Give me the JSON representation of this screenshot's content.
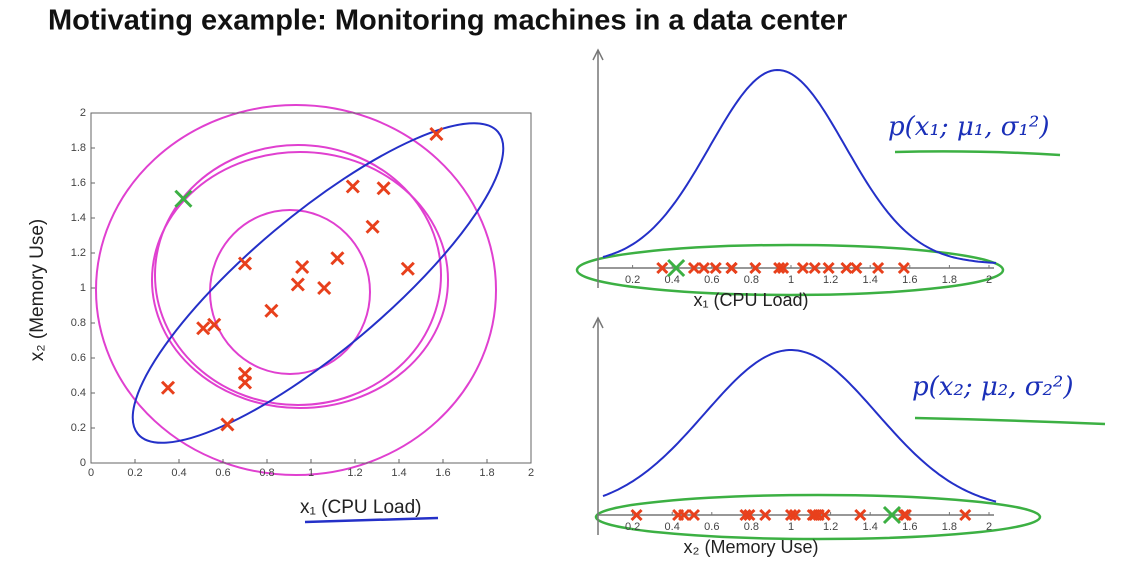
{
  "title": "Motivating example: Monitoring machines in a data center",
  "chart_data": [
    {
      "type": "scatter",
      "color": "#e8401c",
      "x": [
        1.57,
        1.19,
        1.33,
        1.28,
        1.12,
        0.7,
        0.96,
        1.44,
        0.94,
        1.06,
        0.82,
        0.56,
        0.51,
        0.7,
        0.7,
        0.35,
        0.62
      ],
      "y": [
        1.88,
        1.58,
        1.57,
        1.35,
        1.17,
        1.14,
        1.12,
        1.11,
        1.02,
        1.0,
        0.87,
        0.79,
        0.77,
        0.51,
        0.46,
        0.43,
        0.22
      ],
      "anomaly": {
        "x": [
          0.42
        ],
        "y": [
          1.51
        ],
        "color": "#3cb043"
      },
      "xlim": [
        0,
        2
      ],
      "ylim": [
        0,
        2
      ],
      "xticks": [
        0,
        0.2,
        0.4,
        0.6,
        0.8,
        1,
        1.2,
        1.4,
        1.6,
        1.8,
        2
      ],
      "yticks": [
        0,
        0.2,
        0.4,
        0.6,
        0.8,
        1,
        1.2,
        1.4,
        1.6,
        1.8,
        2
      ],
      "xlabel": "x₁ (CPU Load)",
      "ylabel": "x₂ (Memory Use)"
    },
    {
      "type": "strip",
      "color": "#e8401c",
      "values": [
        1.57,
        1.19,
        1.33,
        1.28,
        1.12,
        0.7,
        0.96,
        1.44,
        0.94,
        1.06,
        0.82,
        0.56,
        0.51,
        0.7,
        0.7,
        0.35,
        0.62
      ],
      "anomaly": {
        "values": [
          0.42
        ],
        "color": "#3cb043"
      },
      "xlim": [
        0,
        2
      ],
      "xticks": [
        0.2,
        0.4,
        0.6,
        0.8,
        1,
        1.2,
        1.4,
        1.6,
        1.8,
        2
      ],
      "xlabel": "x₁ (CPU Load)",
      "annotation": "p(x₁; μ₁, σ₁²)"
    },
    {
      "type": "strip",
      "color": "#e8401c",
      "values": [
        1.88,
        1.58,
        1.57,
        1.35,
        1.17,
        1.14,
        1.12,
        1.11,
        1.02,
        1.0,
        0.87,
        0.79,
        0.77,
        0.51,
        0.46,
        0.43,
        0.22
      ],
      "anomaly": {
        "values": [
          1.51
        ],
        "color": "#3cb043"
      },
      "xlim": [
        0,
        2
      ],
      "xticks": [
        0.2,
        0.4,
        0.6,
        0.8,
        1,
        1.2,
        1.4,
        1.6,
        1.8,
        2
      ],
      "xlabel": "x₂ (Memory Use)",
      "annotation": "p(x₂; μ₂, σ₂²)"
    }
  ]
}
